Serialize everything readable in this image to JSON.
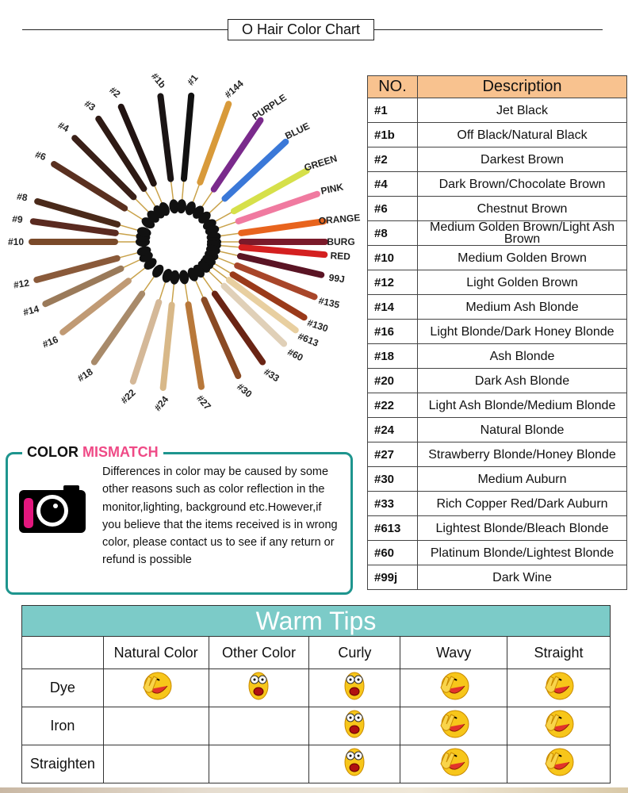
{
  "title": "O Hair Color Chart",
  "wheel": {
    "strands": [
      {
        "label": "#1b",
        "angle": -97,
        "color": "#1a1414"
      },
      {
        "label": "#1",
        "angle": -85,
        "color": "#111"
      },
      {
        "label": "#144",
        "angle": -70,
        "color": "#d89a3a"
      },
      {
        "label": "PURPLE",
        "angle": -56,
        "color": "#7a2a8c"
      },
      {
        "label": "BLUE",
        "angle": -43,
        "color": "#3a78d8"
      },
      {
        "label": "GREEN",
        "angle": -29,
        "color": "#d6e04a"
      },
      {
        "label": "PINK",
        "angle": -19,
        "color": "#f07aa0"
      },
      {
        "label": "ORANGE",
        "angle": -8,
        "color": "#e8641e"
      },
      {
        "label": "BURG",
        "angle": 0,
        "color": "#7a1a2a"
      },
      {
        "label": "RED",
        "angle": 5,
        "color": "#d42020"
      },
      {
        "label": "99J",
        "angle": 13,
        "color": "#5a1424"
      },
      {
        "label": "#135",
        "angle": 22,
        "color": "#a8462a"
      },
      {
        "label": "#130",
        "angle": 31,
        "color": "#9a3a1a"
      },
      {
        "label": "#613",
        "angle": 37,
        "color": "#e8cfa0"
      },
      {
        "label": "#60",
        "angle": 44,
        "color": "#e0d0b8"
      },
      {
        "label": "#33",
        "angle": 55,
        "color": "#6a2414"
      },
      {
        "label": "#30",
        "angle": 66,
        "color": "#8a4a24"
      },
      {
        "label": "#27",
        "angle": 81,
        "color": "#b8783a"
      },
      {
        "label": "#24",
        "angle": 96,
        "color": "#d8b888"
      },
      {
        "label": "#22",
        "angle": 108,
        "color": "#d4b898"
      },
      {
        "label": "#18",
        "angle": 125,
        "color": "#a88a6a"
      },
      {
        "label": "#16",
        "angle": 142,
        "color": "#c09a74"
      },
      {
        "label": "#14",
        "angle": 155,
        "color": "#9a7a5a"
      },
      {
        "label": "#12",
        "angle": 165,
        "color": "#8a5a3a"
      },
      {
        "label": "#10",
        "angle": 180,
        "color": "#7a4a2a"
      },
      {
        "label": "#9",
        "angle": 188,
        "color": "#5a2a20"
      },
      {
        "label": "#8",
        "angle": 196,
        "color": "#4a2a1a"
      },
      {
        "label": "#6",
        "angle": 212,
        "color": "#5a3020"
      },
      {
        "label": "#4",
        "angle": 225,
        "color": "#3a2018"
      },
      {
        "label": "#3",
        "angle": 237,
        "color": "#2e1a14"
      },
      {
        "label": "#2",
        "angle": 247,
        "color": "#221412"
      }
    ]
  },
  "color_table": {
    "headers": [
      "NO.",
      "Description"
    ],
    "header_color": "#f8c28f",
    "rows": [
      {
        "no": "#1",
        "desc": "Jet Black"
      },
      {
        "no": "#1b",
        "desc": "Off Black/Natural Black"
      },
      {
        "no": "#2",
        "desc": "Darkest Brown"
      },
      {
        "no": "#4",
        "desc": "Dark Brown/Chocolate Brown"
      },
      {
        "no": "#6",
        "desc": "Chestnut Brown"
      },
      {
        "no": "#8",
        "desc": "Medium Golden Brown/Light Ash Brown"
      },
      {
        "no": "#10",
        "desc": "Medium Golden Brown"
      },
      {
        "no": "#12",
        "desc": "Light Golden Brown"
      },
      {
        "no": "#14",
        "desc": "Medium Ash Blonde"
      },
      {
        "no": "#16",
        "desc": "Light Blonde/Dark Honey Blonde"
      },
      {
        "no": "#18",
        "desc": "Ash Blonde"
      },
      {
        "no": "#20",
        "desc": "Dark Ash Blonde"
      },
      {
        "no": "#22",
        "desc": "Light Ash Blonde/Medium Blonde"
      },
      {
        "no": "#24",
        "desc": "Natural Blonde"
      },
      {
        "no": "#27",
        "desc": "Strawberry Blonde/Honey Blonde"
      },
      {
        "no": "#30",
        "desc": "Medium Auburn"
      },
      {
        "no": "#33",
        "desc": "Rich Copper Red/Dark Auburn"
      },
      {
        "no": "#613",
        "desc": "Lightest Blonde/Bleach Blonde"
      },
      {
        "no": "#60",
        "desc": "Platinum Blonde/Lightest Blonde"
      },
      {
        "no": "#99j",
        "desc": "Dark Wine"
      }
    ]
  },
  "color_mismatch": {
    "title_part1": "COLOR",
    "title_part2": "MISMATCH",
    "accent": "#ef4a86",
    "border_color": "#1e958e",
    "icon": "camera-icon",
    "text": "Differences in color may be caused by some other reasons such as color reflection in the monitor,lighting, background etc.However,if you believe that the items received is in wrong color, please contact us to see if any return or refund is possible"
  },
  "warm_tips": {
    "title": "Warm Tips",
    "header_color": "#7ccbc8",
    "columns": [
      "Natural Color",
      "Other Color",
      "Curly",
      "Wavy",
      "Straight"
    ],
    "rows": [
      {
        "label": "Dye",
        "cells": [
          "happy",
          "shocked",
          "shocked",
          "happy",
          "happy"
        ]
      },
      {
        "label": "Iron",
        "cells": [
          "",
          "",
          "shocked",
          "happy",
          "happy"
        ]
      },
      {
        "label": "Straighten",
        "cells": [
          "",
          "",
          "shocked",
          "happy",
          "happy"
        ]
      }
    ]
  }
}
